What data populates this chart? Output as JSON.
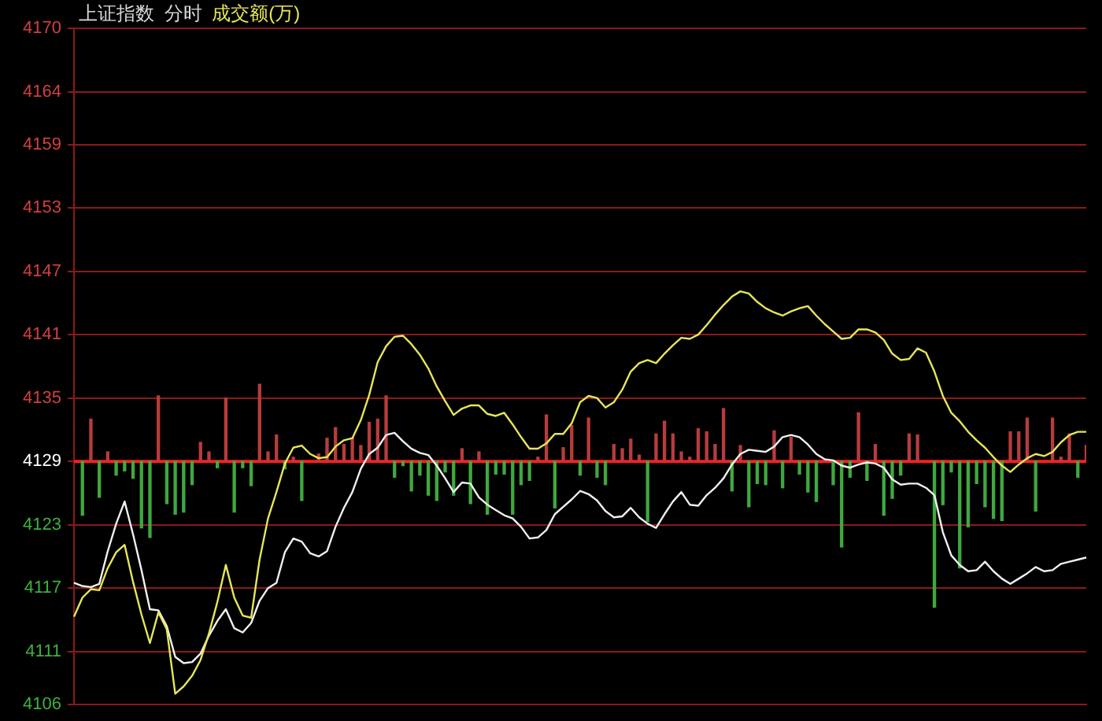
{
  "chart_data": {
    "type": "line",
    "title": "上证指数  分时",
    "grid": "y",
    "tick_labels": "y",
    "categories": [
      null,
      null,
      null,
      null,
      null,
      null,
      null,
      null,
      null,
      null,
      null,
      null,
      null,
      null,
      null,
      null,
      null,
      null,
      null,
      null,
      null,
      null,
      null,
      null,
      null,
      null,
      null,
      null,
      null,
      null,
      null,
      null,
      null,
      null,
      null,
      null,
      null,
      null,
      null,
      null,
      null,
      null,
      null,
      null,
      null,
      null,
      null,
      null,
      null,
      null,
      null,
      null,
      null,
      null,
      null,
      null,
      null,
      null,
      null,
      null,
      null,
      null,
      null,
      null,
      null,
      null,
      null,
      null,
      null,
      null,
      null,
      null,
      null,
      null,
      null,
      null,
      null,
      null,
      null,
      null,
      null,
      null,
      null,
      null,
      null,
      null,
      null,
      null,
      null,
      null,
      null,
      null,
      null,
      null,
      null,
      null,
      null,
      null,
      null,
      null,
      null,
      null,
      null,
      null,
      null,
      null,
      null,
      null,
      null,
      null,
      null,
      null,
      null,
      null,
      null,
      null,
      null,
      null,
      null,
      null,
      null
    ],
    "ylim": [
      4106,
      4170
    ],
    "yticks": [
      4106,
      4111,
      4117,
      4123,
      4129,
      4135,
      4141,
      4147,
      4153,
      4159,
      4164,
      4170
    ],
    "ref_lines": [
      {
        "axis": "y",
        "value": 4129,
        "color": "#ff1e1e"
      }
    ],
    "series": [
      {
        "type": "bar",
        "base": [
          null,
          4129,
          4129,
          4129,
          4129,
          4129,
          4129,
          4129,
          4129,
          4129,
          4129,
          4129,
          4129,
          4129,
          4129,
          4129,
          4129,
          4129,
          4129,
          4129,
          4129,
          4129,
          4129,
          4129,
          4129,
          4129,
          4129,
          4129,
          null,
          4129,
          4129,
          4129,
          4129,
          4129,
          4129,
          4129,
          4129,
          4129,
          4129,
          4129,
          4129,
          4129,
          4129,
          4129,
          4129,
          4129,
          4129,
          4129,
          4129,
          4129,
          4129,
          4129,
          4129,
          4129,
          4129,
          4129,
          4129,
          4129,
          4129,
          4129,
          4129,
          4129,
          4129,
          4129,
          4129,
          4129,
          4129,
          4129,
          4129,
          4129,
          4129,
          4129,
          4129,
          4129,
          4129,
          4129,
          4129,
          4129,
          4129,
          4129,
          4129,
          4129,
          4129,
          4129,
          4129,
          4129,
          4129,
          4129,
          4129,
          null,
          4129,
          4129,
          4129,
          4129,
          4129,
          4129,
          4129,
          4129,
          4129,
          4129,
          4129,
          null,
          4129,
          4129,
          4129,
          4129,
          4129,
          4129,
          4129,
          4129,
          4129,
          4129,
          4129,
          4129,
          4129,
          null,
          4129,
          4129,
          4129,
          4129,
          4129
        ],
        "values": [
          null,
          -5.1,
          4.0,
          -3.4,
          0.9,
          -1.3,
          -0.9,
          -1.6,
          -6.3,
          -7.2,
          6.2,
          -4.0,
          -5.0,
          -4.8,
          -2.2,
          1.8,
          0.9,
          -0.6,
          6.0,
          -4.8,
          -0.6,
          -2.3,
          7.3,
          0.9,
          2.5,
          -0.7,
          0.4,
          -3.7,
          null,
          0.7,
          2.2,
          3.2,
          1.6,
          2.2,
          1.5,
          3.7,
          4.0,
          6.2,
          -1.5,
          -0.4,
          -2.8,
          -1.3,
          -3.2,
          -3.7,
          -1.0,
          -3.2,
          1.2,
          -4.0,
          0.9,
          -5.0,
          -1.2,
          -1.2,
          -5.0,
          -2.2,
          -1.8,
          0.4,
          4.4,
          -4.4,
          1.3,
          3.4,
          -1.3,
          4.1,
          -1.5,
          -2.2,
          1.6,
          1.2,
          2.1,
          0.6,
          -5.7,
          2.6,
          3.8,
          2.6,
          0.9,
          0.4,
          3.1,
          2.8,
          1.6,
          5.0,
          -2.8,
          1.5,
          -4.3,
          -2.1,
          -2.2,
          2.9,
          -2.5,
          2.3,
          -1.2,
          -2.9,
          -3.8,
          null,
          -2.2,
          -8.1,
          -1.5,
          4.6,
          -1.8,
          1.6,
          -5.1,
          -3.5,
          -1.3,
          2.6,
          2.5,
          null,
          -13.8,
          -4.1,
          -1.0,
          -10.1,
          -6.2,
          -2.1,
          -4.3,
          -5.4,
          -5.6,
          2.8,
          2.8,
          4.1,
          -4.7,
          null,
          4.1,
          0.4,
          2.6,
          -1.5,
          1.5
        ],
        "colors": [
          "#3fa83f",
          "#3fa83f",
          "#b83c3c",
          "#3fa83f",
          "#b83c3c",
          "#3fa83f",
          "#3fa83f",
          "#3fa83f",
          "#3fa83f",
          "#3fa83f",
          "#b83c3c",
          "#3fa83f",
          "#3fa83f",
          "#3fa83f",
          "#3fa83f",
          "#b83c3c",
          "#b83c3c",
          "#3fa83f",
          "#b83c3c",
          "#3fa83f",
          "#3fa83f",
          "#3fa83f",
          "#b83c3c",
          "#b83c3c",
          "#b83c3c",
          "#3fa83f",
          "#b83c3c",
          "#3fa83f",
          "#3fa83f",
          "#b83c3c",
          "#b83c3c",
          "#b83c3c",
          "#b83c3c",
          "#b83c3c",
          "#b83c3c",
          "#b83c3c",
          "#b83c3c",
          "#b83c3c",
          "#3fa83f",
          "#3fa83f",
          "#3fa83f",
          "#3fa83f",
          "#3fa83f",
          "#3fa83f",
          "#3fa83f",
          "#3fa83f",
          "#b83c3c",
          "#3fa83f",
          "#b83c3c",
          "#3fa83f",
          "#3fa83f",
          "#3fa83f",
          "#3fa83f",
          "#3fa83f",
          "#3fa83f",
          "#b83c3c",
          "#b83c3c",
          "#3fa83f",
          "#b83c3c",
          "#b83c3c",
          "#3fa83f",
          "#b83c3c",
          "#3fa83f",
          "#3fa83f",
          "#b83c3c",
          "#b83c3c",
          "#b83c3c",
          "#b83c3c",
          "#3fa83f",
          "#b83c3c",
          "#b83c3c",
          "#b83c3c",
          "#b83c3c",
          "#b83c3c",
          "#b83c3c",
          "#b83c3c",
          "#b83c3c",
          "#b83c3c",
          "#3fa83f",
          "#b83c3c",
          "#3fa83f",
          "#3fa83f",
          "#3fa83f",
          "#b83c3c",
          "#3fa83f",
          "#b83c3c",
          "#3fa83f",
          "#3fa83f",
          "#3fa83f",
          "#3fa83f",
          "#3fa83f",
          "#3fa83f",
          "#3fa83f",
          "#b83c3c",
          "#3fa83f",
          "#b83c3c",
          "#3fa83f",
          "#3fa83f",
          "#3fa83f",
          "#b83c3c",
          "#b83c3c",
          "#3fa83f",
          "#3fa83f",
          "#3fa83f",
          "#3fa83f",
          "#3fa83f",
          "#3fa83f",
          "#3fa83f",
          "#3fa83f",
          "#3fa83f",
          "#3fa83f",
          "#b83c3c",
          "#b83c3c",
          "#b83c3c",
          "#3fa83f",
          "#3fa83f",
          "#b83c3c",
          "#b83c3c",
          "#b83c3c",
          "#3fa83f",
          "#b83c3c"
        ]
      },
      {
        "name": "成交额(万)",
        "color": "#e6e65a",
        "values": [
          4114.3,
          4116.1,
          4116.9,
          4116.8,
          4118.9,
          4120.4,
          4121.1,
          4117.6,
          4114.5,
          4111.8,
          4114.7,
          4113.1,
          4107.0,
          4107.7,
          4108.7,
          4110.2,
          4112.7,
          4115.7,
          4119.2,
          4116.1,
          4114.4,
          4114.2,
          4119.7,
          4123.6,
          4126.1,
          4128.8,
          4130.3,
          4130.5,
          4129.7,
          4129.3,
          4129.4,
          4130.4,
          4131.0,
          4131.2,
          4132.9,
          4135.3,
          4138.4,
          4139.9,
          4140.8,
          4140.9,
          4140.1,
          4139.1,
          4137.8,
          4136.1,
          4134.7,
          4133.4,
          4134.0,
          4134.3,
          4134.3,
          4133.5,
          4133.3,
          4133.6,
          4132.5,
          4131.3,
          4130.2,
          4130.2,
          4130.7,
          4131.6,
          4131.6,
          4132.6,
          4134.6,
          4135.2,
          4135.0,
          4134.1,
          4134.6,
          4135.8,
          4137.5,
          4138.3,
          4138.6,
          4138.3,
          4139.2,
          4140.0,
          4140.7,
          4140.6,
          4141.0,
          4141.9,
          4142.9,
          4143.8,
          4144.6,
          4145.1,
          4144.9,
          4144.1,
          4143.5,
          4143.1,
          4142.8,
          4143.2,
          4143.5,
          4143.7,
          4142.8,
          4142.0,
          4141.3,
          4140.6,
          4140.7,
          4141.5,
          4141.5,
          4141.2,
          4140.5,
          4139.2,
          4138.6,
          4138.7,
          4139.7,
          4139.3,
          4137.5,
          4135.2,
          4133.6,
          4132.8,
          4131.8,
          4131.0,
          4130.3,
          4129.4,
          4128.6,
          4128.0,
          4128.7,
          4129.3,
          4129.7,
          4129.5,
          4129.9,
          4130.8,
          4131.5,
          4131.8,
          4131.8
        ]
      },
      {
        "color": "#f0f0f0",
        "values": [
          4117.5,
          4117.2,
          4117.1,
          4117.4,
          4120.5,
          4123.1,
          4125.2,
          4122.1,
          4118.7,
          4115.0,
          4114.9,
          4113.4,
          4110.5,
          4109.9,
          4110.0,
          4110.8,
          4112.5,
          4113.9,
          4115.0,
          4113.2,
          4112.8,
          4113.7,
          4115.8,
          4117.0,
          4117.5,
          4120.4,
          4121.7,
          4121.4,
          4120.3,
          4120.0,
          4120.5,
          4122.8,
          4124.6,
          4126.1,
          4128.3,
          4129.7,
          4130.3,
          4131.5,
          4131.7,
          4130.9,
          4130.2,
          4129.8,
          4129.6,
          4128.6,
          4127.4,
          4126.1,
          4127.0,
          4126.9,
          4125.6,
          4124.9,
          4124.4,
          4123.9,
          4123.6,
          4122.8,
          4121.7,
          4121.8,
          4122.5,
          4124.0,
          4124.7,
          4125.4,
          4126.2,
          4125.9,
          4125.3,
          4124.3,
          4123.7,
          4123.8,
          4124.6,
          4123.7,
          4123.1,
          4122.7,
          4124.0,
          4125.2,
          4126.1,
          4124.9,
          4124.8,
          4125.8,
          4126.5,
          4127.4,
          4128.7,
          4129.7,
          4130.1,
          4130.0,
          4129.9,
          4130.4,
          4131.3,
          4131.5,
          4131.3,
          4130.6,
          4129.7,
          4129.2,
          4129.1,
          4128.6,
          4128.4,
          4128.7,
          4128.9,
          4128.8,
          4128.4,
          4127.3,
          4126.8,
          4126.9,
          4126.9,
          4126.5,
          4125.8,
          4122.3,
          4120.1,
          4119.2,
          4118.6,
          4118.7,
          4119.5,
          4118.6,
          4117.9,
          4117.4,
          4117.9,
          4118.4,
          4119.0,
          4118.6,
          4118.7,
          4119.3,
          4119.5,
          4119.7,
          4119.9
        ]
      }
    ]
  }
}
